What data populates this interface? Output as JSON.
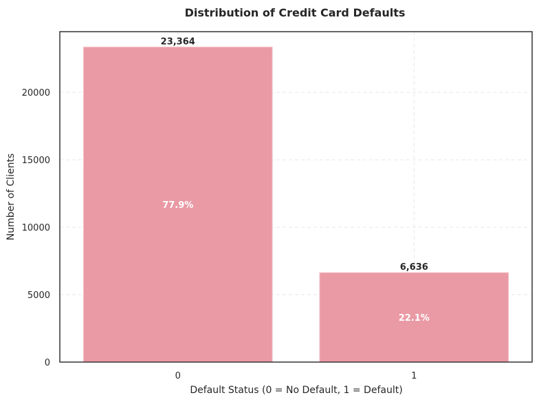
{
  "chart_data": {
    "type": "bar",
    "title": "Distribution of Credit Card Defaults",
    "xlabel": "Default Status (0 = No Default, 1 = Default)",
    "ylabel": "Number of Clients",
    "categories": [
      "0",
      "1"
    ],
    "values": [
      23364,
      6636
    ],
    "value_labels": [
      "23,364",
      "6,636"
    ],
    "percent_labels": [
      "77.9%",
      "22.1%"
    ],
    "ylim": [
      0,
      24500
    ],
    "yticks": [
      0,
      5000,
      10000,
      15000,
      20000
    ],
    "ytick_labels": [
      "0",
      "5000",
      "10000",
      "15000",
      "20000"
    ],
    "grid": true,
    "bar_color": "#ea9aa5"
  }
}
